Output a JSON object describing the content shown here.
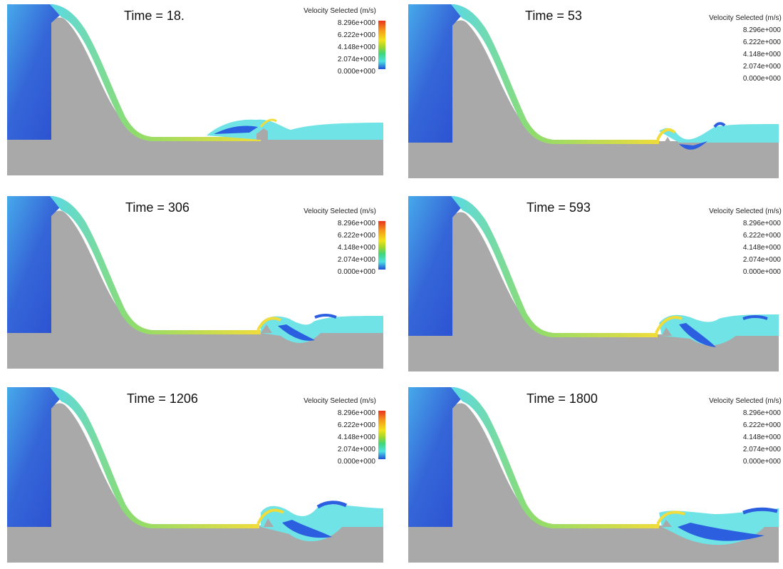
{
  "legend": {
    "title": "Velocity Selected (m/s)",
    "ticks": [
      "8.296e+000",
      "6.222e+000",
      "4.148e+000",
      "2.074e+000",
      "0.000e+000"
    ],
    "colors": {
      "max": "#e8341f",
      "high": "#f59a1c",
      "mid": "#f3e21c",
      "low": "#4fe0e3",
      "min": "#1f4fd8"
    }
  },
  "colors": {
    "solid": "#a9a9a9",
    "reservoir": "#3a63d8",
    "spillway_flow": "#f0dc3a",
    "tailwater": "#6fe3e6"
  },
  "panels": [
    {
      "id": "t18",
      "time_label": "Time = 18."
    },
    {
      "id": "t53",
      "time_label": "Time = 53"
    },
    {
      "id": "t306",
      "time_label": "Time = 306"
    },
    {
      "id": "t593",
      "time_label": "Time = 593"
    },
    {
      "id": "t1206",
      "time_label": "Time = 1206"
    },
    {
      "id": "t1800",
      "time_label": "Time = 1800"
    }
  ]
}
